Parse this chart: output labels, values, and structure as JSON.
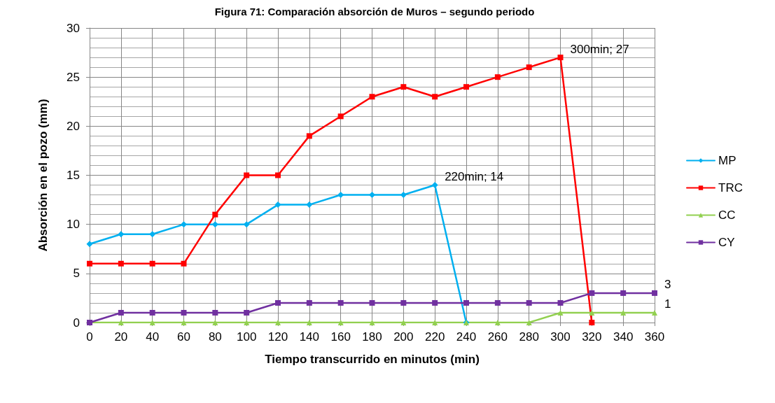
{
  "chart_data": {
    "type": "line",
    "title": "Figura 71: Comparación absorción de Muros – segundo periodo",
    "xlabel": "Tiempo transcurrido en minutos (min)",
    "ylabel": "Absorción en el pozo (mm)",
    "x": [
      0,
      20,
      40,
      60,
      80,
      100,
      120,
      140,
      160,
      180,
      200,
      220,
      240,
      260,
      280,
      300,
      320,
      340,
      360
    ],
    "series": [
      {
        "name": "MP",
        "color": "#00b0f0",
        "marker": "diamond",
        "values": [
          8,
          9,
          9,
          10,
          10,
          10,
          12,
          12,
          13,
          13,
          13,
          14,
          0,
          null,
          null,
          null,
          null,
          null,
          null
        ]
      },
      {
        "name": "TRC",
        "color": "#ff0000",
        "marker": "square",
        "values": [
          6,
          6,
          6,
          6,
          11,
          15,
          15,
          19,
          21,
          23,
          24,
          23,
          24,
          25,
          26,
          27,
          0,
          null,
          null
        ]
      },
      {
        "name": "CC",
        "color": "#92d050",
        "marker": "triangle",
        "values": [
          0,
          0,
          0,
          0,
          0,
          0,
          0,
          0,
          0,
          0,
          0,
          0,
          0,
          0,
          0,
          1,
          1,
          1,
          1
        ]
      },
      {
        "name": "CY",
        "color": "#7030a0",
        "marker": "square",
        "values": [
          0,
          1,
          1,
          1,
          1,
          1,
          2,
          2,
          2,
          2,
          2,
          2,
          2,
          2,
          2,
          2,
          3,
          3,
          3
        ]
      }
    ],
    "xlim": [
      0,
      360
    ],
    "xticks": [
      0,
      20,
      40,
      60,
      80,
      100,
      120,
      140,
      160,
      180,
      200,
      220,
      240,
      260,
      280,
      300,
      320,
      340,
      360
    ],
    "ylim": [
      0,
      30
    ],
    "yticks": [
      0,
      5,
      10,
      15,
      20,
      25,
      30
    ],
    "annotations": [
      {
        "text": "220min; 14",
        "x": 220,
        "y": 14
      },
      {
        "text": "300min; 27",
        "x": 300,
        "y": 27
      },
      {
        "text": "3",
        "x": 360,
        "y": 3
      },
      {
        "text": "1",
        "x": 360,
        "y": 1
      }
    ],
    "grid": true,
    "legend": "right",
    "line_style": "solid"
  }
}
